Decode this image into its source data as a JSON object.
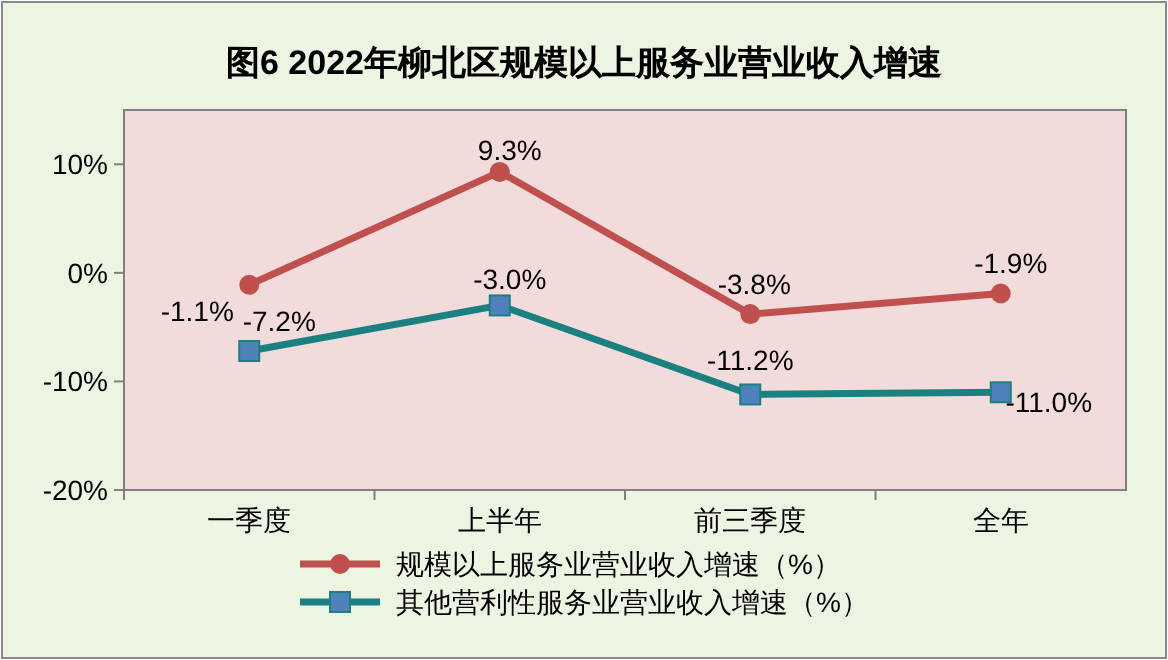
{
  "chart_data": {
    "type": "line",
    "title": "图6  2022年柳北区规模以上服务业营业收入增速",
    "categories": [
      "一季度",
      "上半年",
      "前三季度",
      "全年"
    ],
    "series": [
      {
        "name": "规模以上服务业营业收入增速（%）",
        "color": "#c0504d",
        "marker": "circle",
        "values": [
          -1.1,
          9.3,
          -3.8,
          -1.9
        ],
        "value_labels": [
          "-1.1%",
          "9.3%",
          "-3.8%",
          "-1.9%"
        ]
      },
      {
        "name": "其他营利性服务业营业收入增速（%）",
        "color": "#1a8080",
        "marker": "square",
        "values": [
          -7.2,
          -3.0,
          -11.2,
          -11.0
        ],
        "value_labels": [
          "-7.2%",
          "-3.0%",
          "-11.2%",
          "-11.0%"
        ]
      }
    ],
    "ylim": [
      -20,
      15
    ],
    "yticks": [
      {
        "value": -20,
        "label": "-20%"
      },
      {
        "value": -10,
        "label": "-10%"
      },
      {
        "value": 0,
        "label": "0%"
      },
      {
        "value": 10,
        "label": "10%"
      }
    ],
    "legend": "bottom",
    "grid": false
  }
}
